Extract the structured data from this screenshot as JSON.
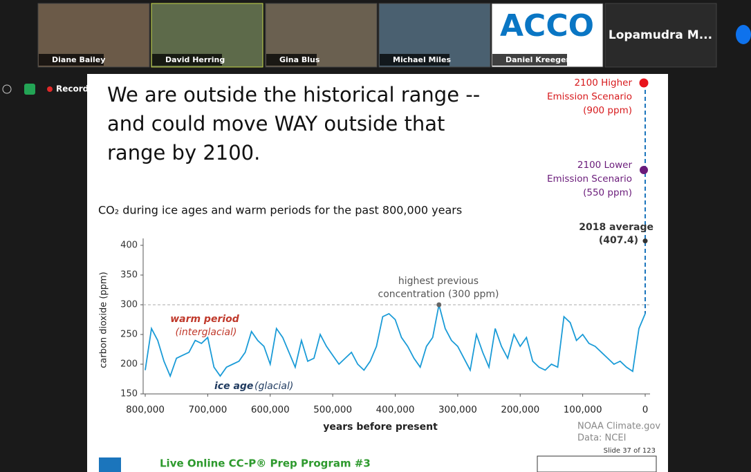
{
  "meeting": {
    "participants": [
      "Diane Bailey",
      "David Herring",
      "Gina Blus",
      "Michael Miles",
      "Daniel Kreeger",
      "Lopamudra M..."
    ],
    "logo_tile": "ACCO",
    "recording": "Recording"
  },
  "slide": {
    "title_lines": [
      "We are outside the historical range --",
      "and could move WAY outside that",
      "range by 2100."
    ],
    "higher_scenario": [
      "2100 Higher",
      "Emission Scenario",
      "(900 ppm)"
    ],
    "lower_scenario": [
      "2100 Lower",
      "Emission Scenario",
      "(550 ppm)"
    ],
    "credits": [
      "NOAA Climate.gov",
      "Data: NCEI"
    ],
    "slide_number": "Slide 37 of 123",
    "footer": "Live Online CC-P® Prep Program #3"
  },
  "chart_data": {
    "type": "line",
    "title": "CO₂ during ice ages and warm periods for the past 800,000 years",
    "x_label": "years before present",
    "y_label": "carbon dioxide (ppm)",
    "x": [
      800000,
      790000,
      780000,
      770000,
      760000,
      750000,
      740000,
      730000,
      720000,
      710000,
      700000,
      690000,
      680000,
      670000,
      660000,
      650000,
      640000,
      630000,
      620000,
      610000,
      600000,
      590000,
      580000,
      570000,
      560000,
      550000,
      540000,
      530000,
      520000,
      510000,
      500000,
      490000,
      480000,
      470000,
      460000,
      450000,
      440000,
      430000,
      420000,
      410000,
      400000,
      390000,
      380000,
      370000,
      360000,
      350000,
      340000,
      330000,
      320000,
      310000,
      300000,
      290000,
      280000,
      270000,
      260000,
      250000,
      240000,
      230000,
      220000,
      210000,
      200000,
      190000,
      180000,
      170000,
      160000,
      150000,
      140000,
      130000,
      120000,
      110000,
      100000,
      90000,
      80000,
      70000,
      60000,
      50000,
      40000,
      30000,
      20000,
      10000,
      0
    ],
    "series": [
      {
        "name": "CO₂",
        "color": "#1a9bd7",
        "values": [
          190,
          260,
          240,
          205,
          180,
          210,
          215,
          220,
          240,
          235,
          245,
          195,
          180,
          195,
          200,
          205,
          220,
          255,
          240,
          230,
          200,
          260,
          245,
          220,
          195,
          240,
          205,
          210,
          250,
          230,
          215,
          200,
          210,
          220,
          200,
          190,
          205,
          230,
          280,
          285,
          275,
          245,
          230,
          210,
          195,
          230,
          245,
          300,
          260,
          240,
          230,
          210,
          190,
          250,
          220,
          195,
          260,
          230,
          210,
          250,
          230,
          245,
          205,
          195,
          190,
          200,
          195,
          280,
          270,
          240,
          250,
          235,
          230,
          220,
          210,
          200,
          205,
          195,
          188,
          260,
          285
        ]
      }
    ],
    "xlim": [
      800000,
      0
    ],
    "ylim": [
      150,
      400
    ],
    "xticks": [
      {
        "value": 800000,
        "label": "800,000"
      },
      {
        "value": 700000,
        "label": "700,000"
      },
      {
        "value": 600000,
        "label": "600,000"
      },
      {
        "value": 500000,
        "label": "500,000"
      },
      {
        "value": 400000,
        "label": "400,000"
      },
      {
        "value": 300000,
        "label": "300,000"
      },
      {
        "value": 200000,
        "label": "200,000"
      },
      {
        "value": 100000,
        "label": "100,000"
      },
      0
    ],
    "yticks": [
      150,
      200,
      250,
      300,
      350,
      400
    ],
    "annotations": {
      "highest": {
        "lines": [
          "highest previous",
          "concentration (300 ppm)"
        ],
        "x": 330000,
        "value": 300
      },
      "current": {
        "label": "2018 average",
        "x": 0,
        "value": 407.4,
        "value_label": "(407.4)"
      },
      "warm": [
        "warm period",
        "(interglacial)"
      ],
      "ice": [
        "ice age",
        "(glacial)"
      ]
    }
  }
}
